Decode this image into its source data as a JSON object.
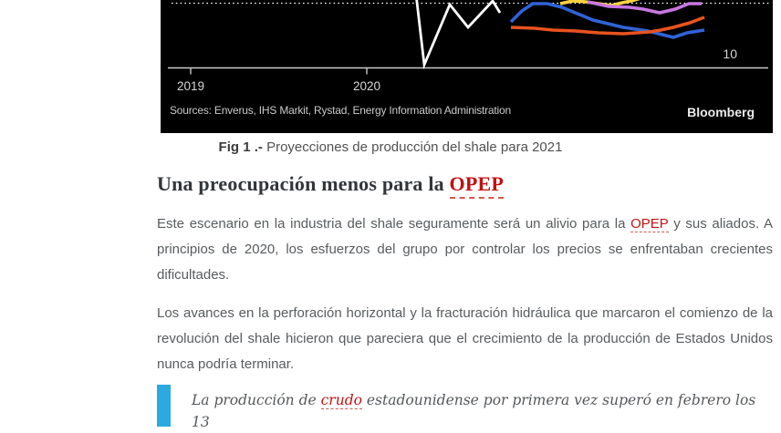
{
  "figure": {
    "caption_label": "Fig 1 .-",
    "caption_text": "Proyecciones de producción del shale para 2021"
  },
  "heading": {
    "prefix": "Una preocupación menos para la ",
    "link_text": "OPEP",
    "link_color": "#c40f0f"
  },
  "paragraphs": {
    "p1_before": "Este escenario en la industria del shale seguramente será un alivio para la ",
    "p1_link": "OPEP",
    "p1_after": " y sus aliados. A principios de 2020, los esfuerzos del grupo por controlar los precios se enfrentaban crecientes dificultades.",
    "p2": "Los avances en la perforación horizontal y la fracturación hidráulica que marcaron el comienzo de la revolución del shale hicieron que pareciera que el crecimiento de la producción de Estados Unidos nunca podría terminar."
  },
  "quote": {
    "before": "La producción de ",
    "link_text": "crudo",
    "after": " estadounidense por primera vez superó en febrero los 13",
    "bar_color": "#2da9e1"
  },
  "chart_data": {
    "type": "line",
    "note": "partial (cropped) Bloomberg chart, only bottom band of plot visible",
    "background": "#000000",
    "x_ticks": [
      {
        "label": "2019",
        "x": 33
      },
      {
        "label": "2020",
        "x": 226
      }
    ],
    "right_axis_tick": "10",
    "axis_color": "#c9c9c9",
    "tick_label_color": "#d6d6d6",
    "gridline_color": "#ffffff",
    "sources": "Sources: Enverus, IHS Markit, Rystad, Energy Information Administration",
    "brand": "Bloomberg",
    "layout": {
      "axis_y": 74.5,
      "axis_x1": 8,
      "axis_x2": 666,
      "gridline_y": 3.5,
      "gridline_x1": 12,
      "gridline_x2": 668,
      "tick_label_y": 99,
      "right_label_x": 632,
      "right_label_y": 64
    },
    "series": [
      {
        "name": "actual-production",
        "color": "#ffffff",
        "width": 2.8,
        "points": [
          [
            280,
            -6
          ],
          [
            289,
            71
          ],
          [
            317,
            5
          ],
          [
            337,
            30
          ],
          [
            364,
            1
          ],
          [
            372,
            14
          ]
        ]
      },
      {
        "name": "projection-blue",
        "color": "#2f63d8",
        "width": 3.6,
        "points": [
          [
            384,
            24
          ],
          [
            396,
            12
          ],
          [
            408,
            4
          ],
          [
            424,
            4
          ],
          [
            440,
            8
          ],
          [
            452,
            13
          ],
          [
            474,
            22
          ],
          [
            507,
            30
          ],
          [
            534,
            34
          ],
          [
            562,
            41
          ],
          [
            577,
            36
          ],
          [
            596,
            33
          ]
        ]
      },
      {
        "name": "projection-orange",
        "color": "#e9531d",
        "width": 3.6,
        "points": [
          [
            384,
            30
          ],
          [
            410,
            31
          ],
          [
            430,
            33
          ],
          [
            455,
            34
          ],
          [
            480,
            36
          ],
          [
            507,
            37
          ],
          [
            522,
            36
          ],
          [
            536,
            35
          ],
          [
            548,
            33
          ],
          [
            562,
            30
          ],
          [
            580,
            25
          ],
          [
            596,
            19
          ]
        ]
      },
      {
        "name": "projection-yellow",
        "color": "#fbd23e",
        "width": 3.6,
        "points": [
          [
            438,
            4
          ],
          [
            452,
            1
          ],
          [
            466,
            2
          ],
          [
            480,
            4
          ],
          [
            494,
            6
          ],
          [
            506,
            3
          ],
          [
            516,
            1
          ],
          [
            526,
            -2
          ]
        ]
      },
      {
        "name": "projection-purple",
        "color": "#c876e2",
        "width": 3.6,
        "points": [
          [
            468,
            2
          ],
          [
            491,
            7
          ],
          [
            514,
            8
          ],
          [
            529,
            10
          ],
          [
            547,
            14
          ],
          [
            564,
            10
          ],
          [
            579,
            4
          ],
          [
            593,
            4
          ]
        ]
      }
    ]
  }
}
